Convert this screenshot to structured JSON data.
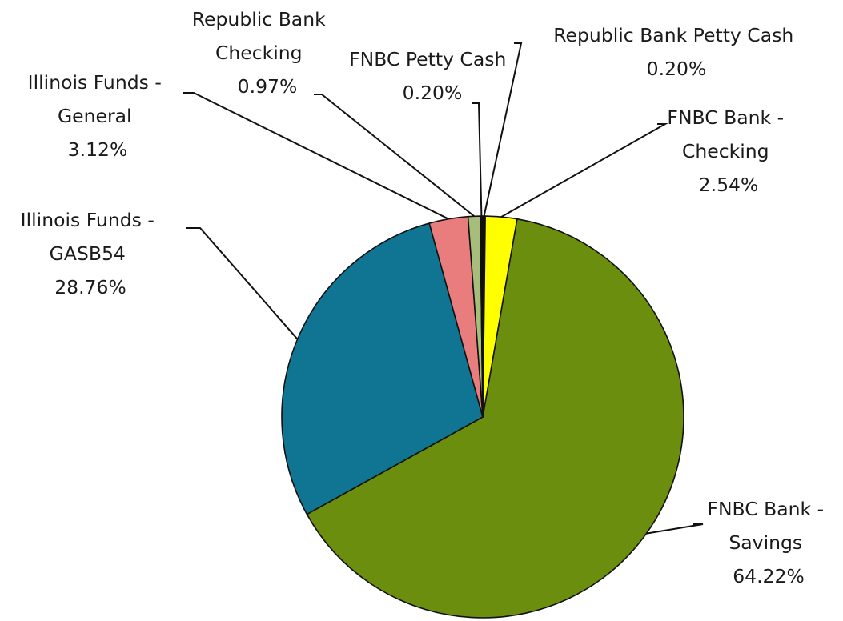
{
  "chart_data": {
    "type": "pie",
    "title": "",
    "start_angle_deg": 0,
    "direction": "clockwise",
    "legend": "none",
    "slices": [
      {
        "label": [
          "Republic Bank Petty Cash"
        ],
        "value_text": "0.20%",
        "value": 0.2,
        "color": "#111111"
      },
      {
        "label": [
          "FNBC Bank -",
          "Checking"
        ],
        "value_text": "2.54%",
        "value": 2.54,
        "color": "#ffff00"
      },
      {
        "label": [
          "FNBC Bank -",
          "Savings"
        ],
        "value_text": "64.22%",
        "value": 64.22,
        "color": "#6b8e0e"
      },
      {
        "label": [
          "Illinois Funds -",
          "GASB54"
        ],
        "value_text": "28.76%",
        "value": 28.76,
        "color": "#0f7592"
      },
      {
        "label": [
          "Illinois Funds -",
          "General"
        ],
        "value_text": "3.12%",
        "value": 3.12,
        "color": "#e97c7c"
      },
      {
        "label": [
          "Republic Bank",
          "Checking"
        ],
        "value_text": "0.97%",
        "value": 0.97,
        "color": "#a7bd7a"
      },
      {
        "label": [
          "FNBC Petty Cash"
        ],
        "value_text": "0.20%",
        "value": 0.2,
        "color": "#111111"
      }
    ]
  }
}
